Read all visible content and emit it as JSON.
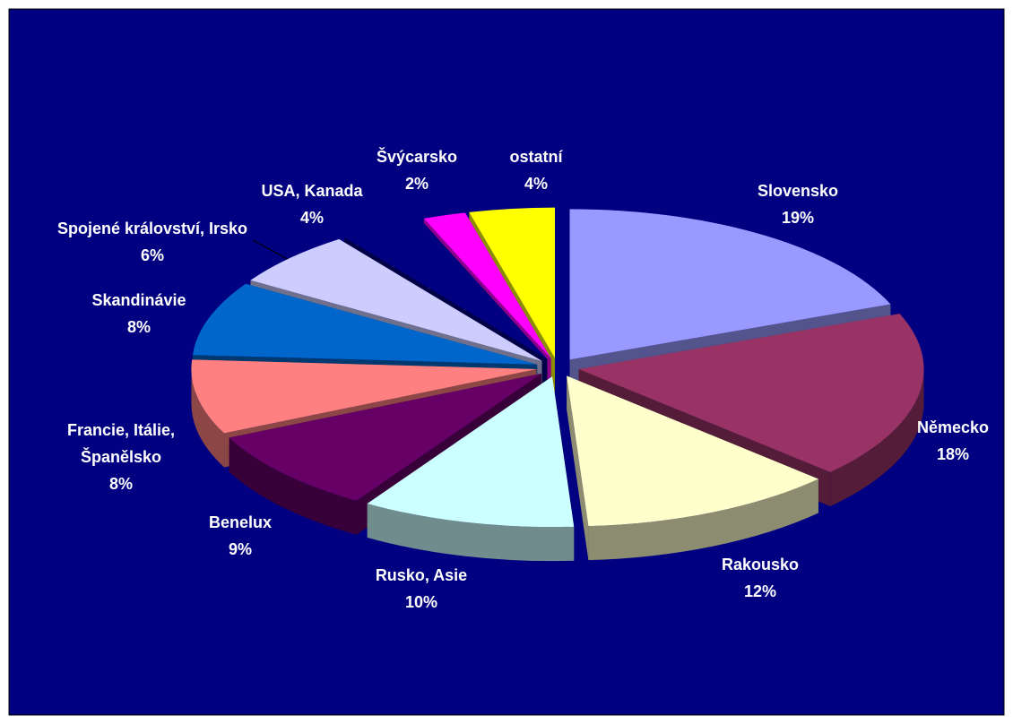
{
  "chart_data": {
    "type": "pie",
    "categories": [
      "Slovensko",
      "Německo",
      "Rakousko",
      "Rusko, Asie",
      "Benelux",
      "Francie, Itálie, Španělsko",
      "Skandinávie",
      "Spojené království, Irsko",
      "USA, Kanada",
      "Švýcarsko",
      "ostatní"
    ],
    "values": [
      19,
      18,
      12,
      10,
      9,
      8,
      8,
      6,
      4,
      2,
      4
    ],
    "value_labels": [
      "19%",
      "18%",
      "12%",
      "10%",
      "9%",
      "8%",
      "8%",
      "6%",
      "4%",
      "2%",
      "4%"
    ],
    "colors": [
      "#9999ff",
      "#993366",
      "#ffffcc",
      "#ccffff",
      "#660066",
      "#ff8080",
      "#0066cc",
      "#ccccff",
      "#000080",
      "#ff00ff",
      "#ffff00"
    ]
  }
}
